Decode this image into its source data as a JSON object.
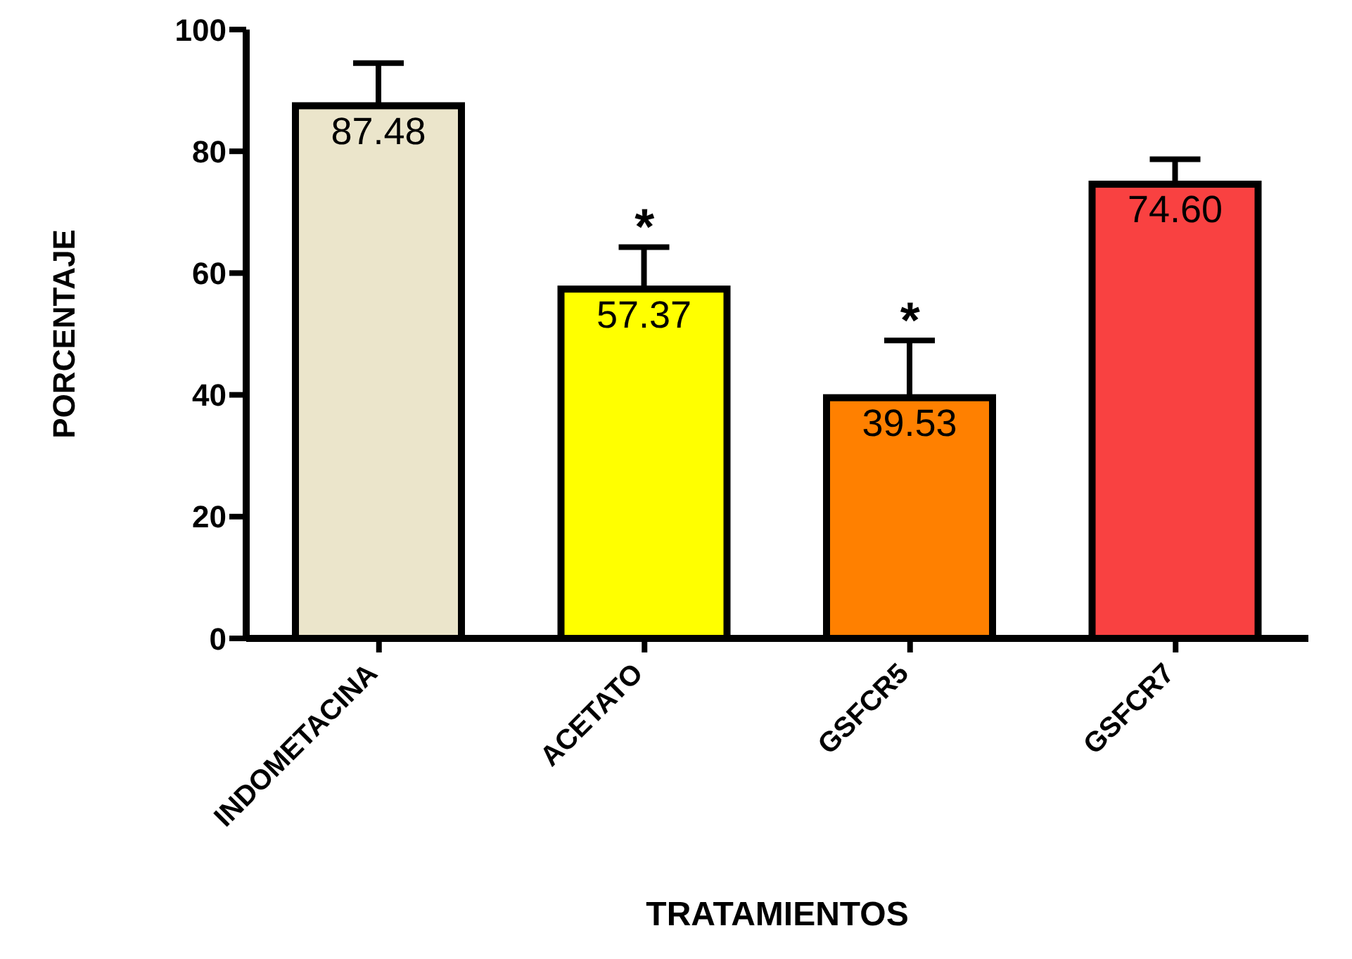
{
  "chart_data": {
    "type": "bar",
    "xlabel": "TRATAMIENTOS",
    "ylabel": "PORCENTAJE",
    "categories": [
      "INDOMETACINA",
      "ACETATO",
      "GSFCR5",
      "GSFCR7"
    ],
    "values": [
      87.48,
      57.37,
      39.53,
      74.6
    ],
    "colors": [
      "#ebe5cb",
      "#ffff00",
      "#ff8000",
      "#f94141"
    ],
    "errors": [
      7.0,
      6.9,
      9.4,
      4.1
    ],
    "value_labels": [
      "87.48",
      "57.37",
      "39.53",
      "74.60"
    ],
    "ylim": [
      0,
      100
    ],
    "yticks": [
      0,
      20,
      40,
      60,
      80,
      100
    ],
    "grid": false,
    "annotations": [
      {
        "text": "*",
        "x": "ACETATO",
        "y": 64.27
      },
      {
        "text": "*",
        "x": "GSFCR5",
        "y": 48.93
      }
    ]
  }
}
